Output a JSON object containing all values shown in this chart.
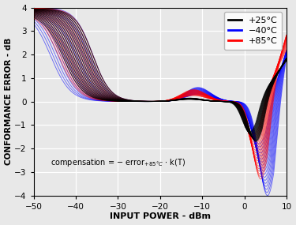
{
  "xlim": [
    -50,
    10
  ],
  "ylim": [
    -4,
    4
  ],
  "xlabel": "INPUT POWER - dBm",
  "ylabel": "CONFORMANCE ERROR - dB",
  "legend_labels": [
    "+25°C",
    "−40°C",
    "+85°C"
  ],
  "legend_colors": [
    "black",
    "blue",
    "red"
  ],
  "n_black": 18,
  "n_blue": 18,
  "n_red": 18,
  "bg_color": "#e8e8e8",
  "grid_color": "white"
}
